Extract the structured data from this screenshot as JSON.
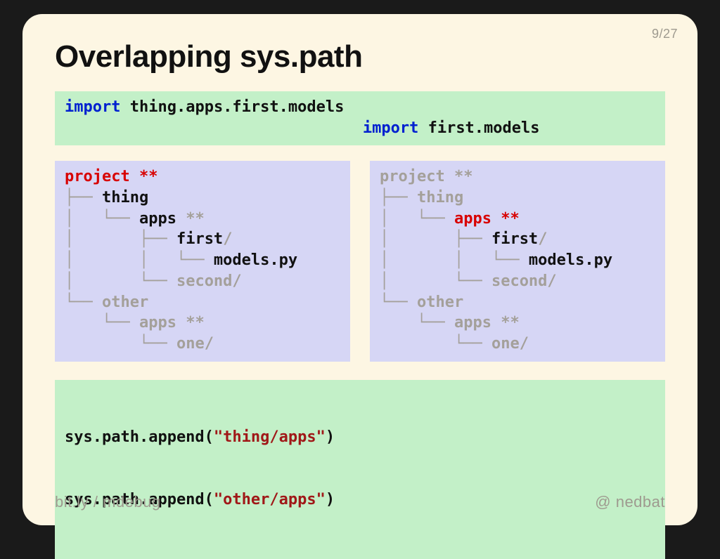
{
  "page": {
    "current": 9,
    "total": 27
  },
  "title": "Overlapping sys.path",
  "colors": {
    "slide_bg": "#fdf6e3",
    "page_bg": "#1a1a1a",
    "green_bg": "#c3f0c8",
    "purple_bg": "#d6d6f5",
    "keyword": "#0020d0",
    "string": "#a01818",
    "highlight": "#d80000",
    "dim": "#a4a09a",
    "text": "#111111",
    "footer": "#9e9a8f"
  },
  "imports": {
    "line1": {
      "kw": "import",
      "module": "thing.apps.first.models"
    },
    "line2": {
      "indent": "                                ",
      "kw": "import",
      "module": "first.models"
    }
  },
  "tree_glyphs": {
    "tee": "├── ",
    "elbow": "└── ",
    "pipe": "│   ",
    "space": "    "
  },
  "tree_left": [
    {
      "indent": "",
      "text": "project ",
      "suffix": "**",
      "style": "red"
    },
    {
      "indent": "├── ",
      "text": "thing",
      "suffix": "",
      "style": "black"
    },
    {
      "indent": "│   └── ",
      "text": "apps ",
      "suffix": "**",
      "style": "dimmix",
      "mix": {
        "name": "apps",
        "name_style": "black",
        "suffix_style": "dim"
      }
    },
    {
      "indent": "│       ├── ",
      "text": "first",
      "suffix": "/",
      "style": "firstline"
    },
    {
      "indent": "│       │   └── ",
      "text": "models.py",
      "suffix": "",
      "style": "black"
    },
    {
      "indent": "│       └── ",
      "text": "second",
      "suffix": "/",
      "style": "dim"
    },
    {
      "indent": "└── ",
      "text": "other",
      "suffix": "",
      "style": "dim"
    },
    {
      "indent": "    └── ",
      "text": "apps ",
      "suffix": "**",
      "style": "dim"
    },
    {
      "indent": "        └── ",
      "text": "one",
      "suffix": "/",
      "style": "dim"
    }
  ],
  "tree_right": [
    {
      "indent": "",
      "text": "project ",
      "suffix": "**",
      "style": "dim"
    },
    {
      "indent": "├── ",
      "text": "thing",
      "suffix": "",
      "style": "dim"
    },
    {
      "indent": "│   └── ",
      "text": "apps ",
      "suffix": "**",
      "style": "red"
    },
    {
      "indent": "│       ├── ",
      "text": "first",
      "suffix": "/",
      "style": "firstline"
    },
    {
      "indent": "│       │   └── ",
      "text": "models.py",
      "suffix": "",
      "style": "black"
    },
    {
      "indent": "│       └── ",
      "text": "second",
      "suffix": "/",
      "style": "dim"
    },
    {
      "indent": "└── ",
      "text": "other",
      "suffix": "",
      "style": "dim"
    },
    {
      "indent": "    └── ",
      "text": "apps ",
      "suffix": "**",
      "style": "dim"
    },
    {
      "indent": "        └── ",
      "text": "one",
      "suffix": "/",
      "style": "dim"
    }
  ],
  "syspath": {
    "prefix": "sys.path.append(",
    "suffix": ")",
    "args": [
      "\"thing/apps\"",
      "\"other/apps\""
    ]
  },
  "footer": {
    "left_a": "bit.ly",
    "left_sep": " / ",
    "left_b": "mdebug",
    "right_at": "@",
    "right_name": "nedbat"
  }
}
